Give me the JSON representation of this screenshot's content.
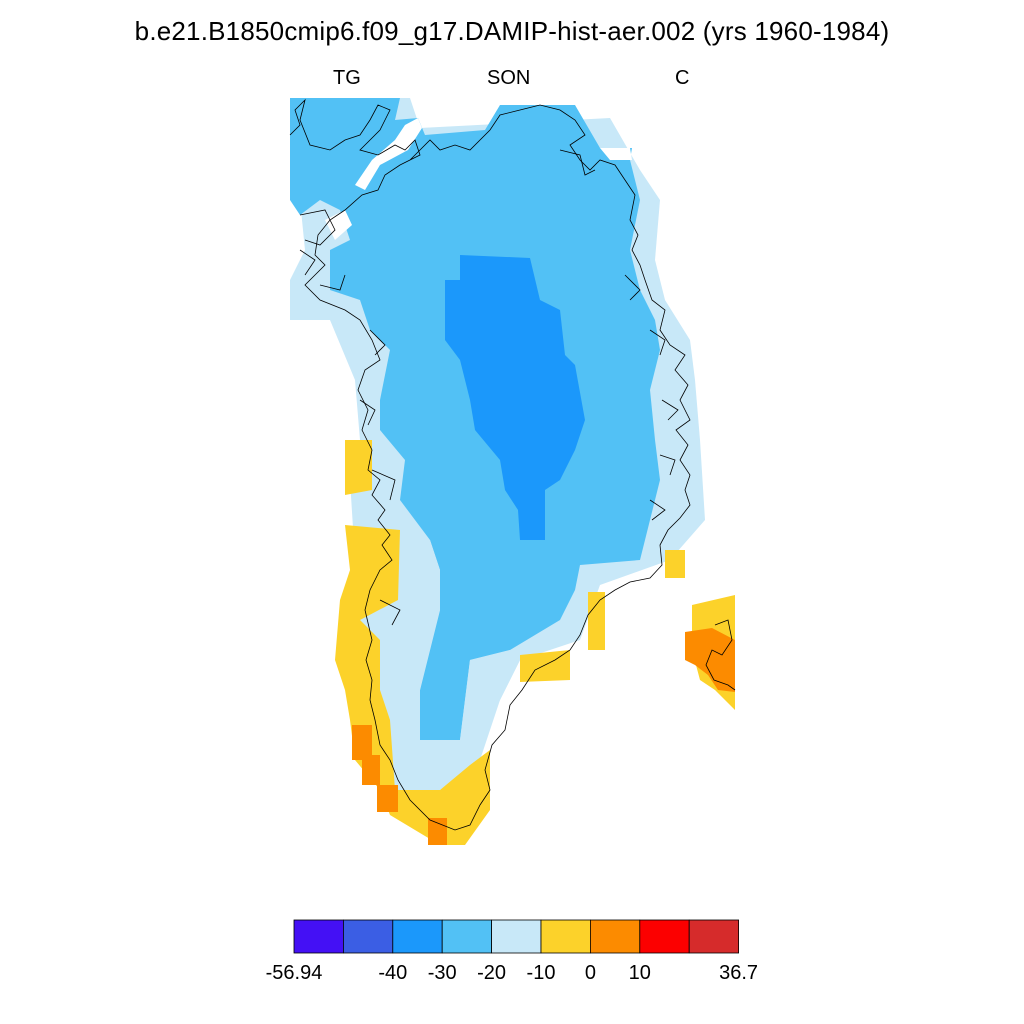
{
  "title": "b.e21.B1850cmip6.f09_g17.DAMIP-hist-aer.002 (yrs 1960-1984)",
  "left_label": "TG",
  "center_label": "SON",
  "right_label": "C",
  "colorbar": {
    "colors": [
      "#4410f5",
      "#3b5ee4",
      "#1b98fb",
      "#52c1f5",
      "#c8e8f8",
      "#fcd22a",
      "#fc8b00",
      "#fc0000",
      "#d62b2b"
    ],
    "tick_labels": [
      "-56.94",
      "-40",
      "-30",
      "-20",
      "-10",
      "0",
      "10",
      "36.7"
    ]
  },
  "map_colors": {
    "light_blue": "#c8e8f8",
    "blue": "#52c1f5",
    "dark_blue": "#1b98fb",
    "yellow": "#fcd22a",
    "orange": "#fc8b00"
  }
}
